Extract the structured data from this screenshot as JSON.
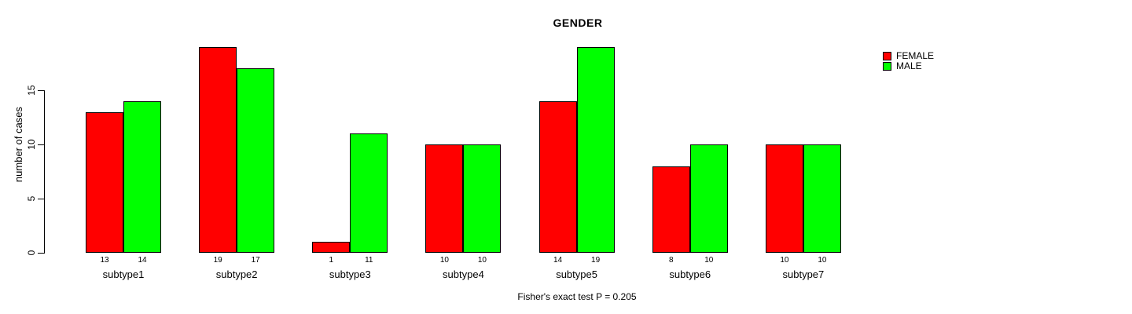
{
  "chart_data": {
    "type": "bar",
    "title": "GENDER",
    "ylabel": "number of cases",
    "xlabel": "",
    "caption": "Fisher's exact test P = 0.205",
    "categories": [
      "subtype1",
      "subtype2",
      "subtype3",
      "subtype4",
      "subtype5",
      "subtype6",
      "subtype7"
    ],
    "series": [
      {
        "name": "FEMALE",
        "color": "#ff0000",
        "values": [
          13,
          19,
          1,
          10,
          14,
          8,
          10
        ]
      },
      {
        "name": "MALE",
        "color": "#00ff00",
        "values": [
          14,
          17,
          11,
          10,
          19,
          10,
          10
        ]
      }
    ],
    "yticks": [
      0,
      5,
      10,
      15
    ],
    "ylim": [
      0,
      20
    ],
    "grid": false,
    "show_value_labels": true,
    "legend_position": "top-right",
    "bar_border_color": "#000000",
    "background_color": "#ffffff",
    "text_color": "#000000"
  }
}
